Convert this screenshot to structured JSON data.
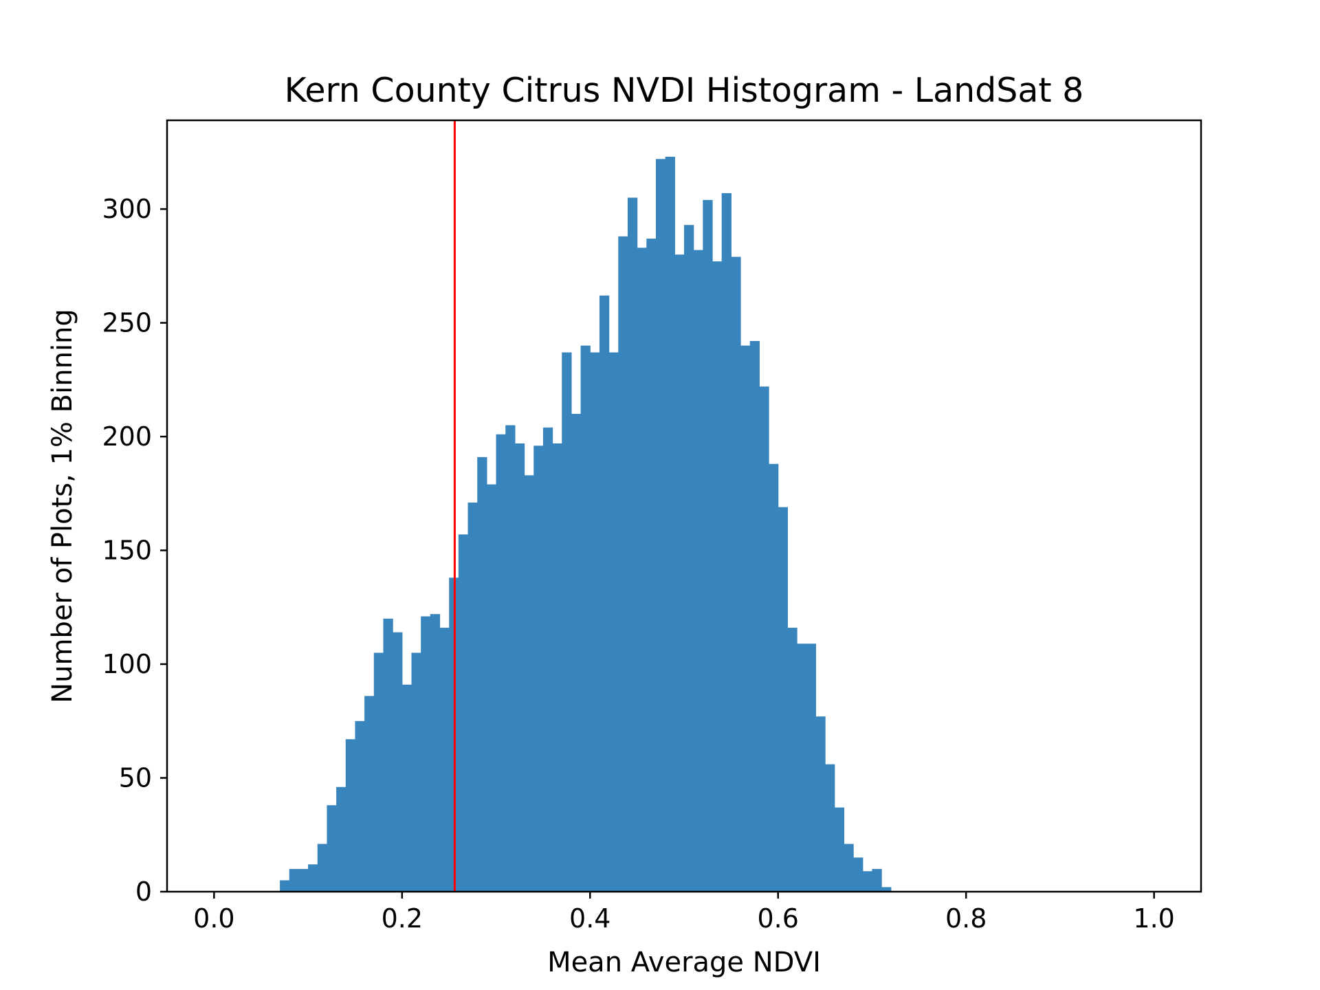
{
  "chart_data": {
    "type": "bar",
    "title": "Kern County Citrus NVDI Histogram - LandSat 8",
    "xlabel": "Mean Average NDVI",
    "ylabel": "Number of Plots, 1% Binning",
    "xlim": [
      -0.05,
      1.05
    ],
    "ylim": [
      0,
      339
    ],
    "xticks": [
      0.0,
      0.2,
      0.4,
      0.6,
      0.8,
      1.0
    ],
    "xtick_labels": [
      "0.0",
      "0.2",
      "0.4",
      "0.6",
      "0.8",
      "1.0"
    ],
    "yticks": [
      0,
      50,
      100,
      150,
      200,
      250,
      300
    ],
    "ytick_labels": [
      "0",
      "50",
      "100",
      "150",
      "200",
      "250",
      "300"
    ],
    "bin_width": 0.01,
    "bin_starts": [
      0.07,
      0.08,
      0.09,
      0.1,
      0.11,
      0.12,
      0.13,
      0.14,
      0.15,
      0.16,
      0.17,
      0.18,
      0.19,
      0.2,
      0.21,
      0.22,
      0.23,
      0.24,
      0.25,
      0.26,
      0.27,
      0.28,
      0.29,
      0.3,
      0.31,
      0.32,
      0.33,
      0.34,
      0.35,
      0.36,
      0.37,
      0.38,
      0.39,
      0.4,
      0.41,
      0.42,
      0.43,
      0.44,
      0.45,
      0.46,
      0.47,
      0.48,
      0.49,
      0.5,
      0.51,
      0.52,
      0.53,
      0.54,
      0.55,
      0.56,
      0.57,
      0.58,
      0.59,
      0.6,
      0.61,
      0.62,
      0.63,
      0.64,
      0.65,
      0.66,
      0.67,
      0.68,
      0.69,
      0.7,
      0.71,
      0.72
    ],
    "values": [
      5,
      10,
      10,
      12,
      21,
      38,
      46,
      67,
      75,
      86,
      105,
      120,
      114,
      91,
      105,
      121,
      122,
      116,
      138,
      157,
      171,
      191,
      179,
      201,
      205,
      197,
      183,
      196,
      204,
      197,
      237,
      210,
      240,
      237,
      262,
      237,
      288,
      305,
      283,
      287,
      322,
      323,
      280,
      293,
      282,
      304,
      277,
      307,
      279,
      240,
      242,
      222,
      188,
      169,
      116,
      109,
      109,
      77,
      56,
      37,
      21,
      15,
      9,
      10,
      2,
      0
    ],
    "grid": false,
    "colors": {
      "bars": "#3884bc",
      "threshold_line": "#ff0000"
    },
    "threshold_line_x": 0.256
  }
}
